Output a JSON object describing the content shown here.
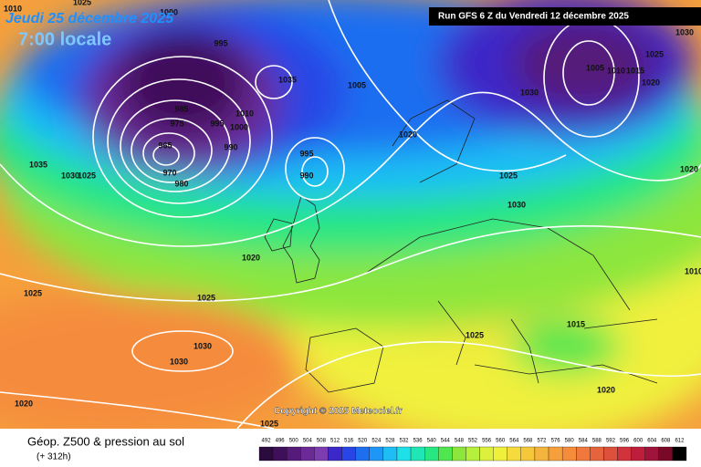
{
  "header": {
    "date": "Jeudi 25 décembre 2025",
    "time": "7:00 locale",
    "run": "Run GFS 6 Z du Vendredi 12 décembre 2025"
  },
  "copyright": "Copyright © 2025 Meteociel.fr",
  "footer": {
    "title": "Géop. Z500 & pression au sol",
    "lead": "(+ 312h)"
  },
  "scale": {
    "values": [
      492,
      496,
      500,
      504,
      508,
      512,
      516,
      520,
      524,
      528,
      532,
      536,
      540,
      544,
      548,
      552,
      556,
      560,
      564,
      568,
      572,
      576,
      580,
      584,
      588,
      592,
      596,
      600,
      604,
      608,
      612
    ],
    "colors": [
      "#2b0a3d",
      "#3f0f5a",
      "#551a7a",
      "#6b2a96",
      "#7d3cb0",
      "#3c28c8",
      "#2846e6",
      "#1e6ef0",
      "#1e96f5",
      "#1ebef5",
      "#1ee0e6",
      "#1ee6b4",
      "#28e682",
      "#50e650",
      "#8ce63c",
      "#b4f03c",
      "#dcf03c",
      "#f0f03c",
      "#f5dc3c",
      "#f5c83c",
      "#f5b43c",
      "#f5a03c",
      "#f58c3c",
      "#f0783c",
      "#e6643c",
      "#dc503c",
      "#d2323c",
      "#be1e3c",
      "#a0143c",
      "#780a28",
      "#000000"
    ]
  },
  "isobar_labels": [
    "1010",
    "1025",
    "1000",
    "995",
    "1035",
    "1030",
    "1025",
    "985",
    "975",
    "965",
    "970",
    "980",
    "995",
    "1000",
    "990",
    "1010",
    "1035",
    "1005",
    "995",
    "990",
    "1020",
    "1025",
    "1030",
    "1030",
    "1005",
    "1010",
    "1015",
    "1020",
    "1025",
    "1030",
    "1020",
    "1020",
    "1025",
    "1025",
    "1030",
    "1030",
    "1020",
    "1025",
    "1025",
    "1015",
    "1020",
    "1010"
  ]
}
